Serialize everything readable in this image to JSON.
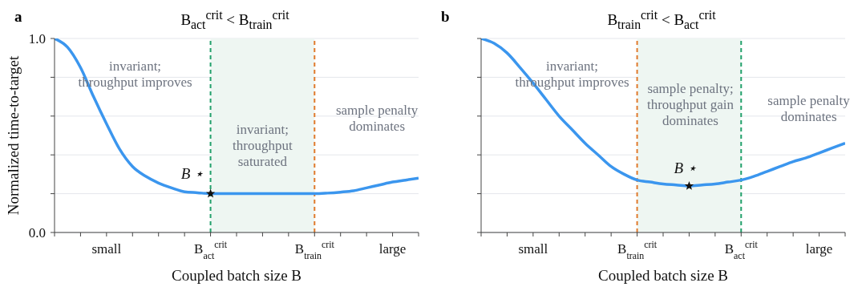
{
  "chart_data": [
    {
      "type": "line",
      "title": "B$_{act}$$^{crit}$ < B$_{train}$$^{crit}$",
      "xlabel": "Coupled batch size B",
      "ylabel": "Normalized time-to-target",
      "categories": [
        null,
        null,
        null,
        null,
        "small",
        null,
        null,
        null,
        null,
        null,
        null,
        null,
        "B$_{act}$$^{crit}$",
        null,
        null,
        null,
        null,
        null,
        null,
        null,
        "B$_{train}$$^{crit}$",
        null,
        null,
        null,
        null,
        null,
        "large",
        null,
        null
      ],
      "ylim": [
        0,
        1.0
      ],
      "yticks": [
        {
          "value": 0,
          "label": "0.0"
        },
        {
          "value": 0.2,
          "label": null
        },
        {
          "value": 0.4,
          "label": null
        },
        {
          "value": 0.6,
          "label": null
        },
        {
          "value": 0.8,
          "label": null
        },
        {
          "value": 1.0,
          "label": "1.0"
        }
      ],
      "grid": "y",
      "series": [
        {
          "color": "#3b96ee",
          "values": [
            1.0,
            0.955,
            0.85,
            0.7,
            0.56,
            0.43,
            0.34,
            0.29,
            0.255,
            0.23,
            0.21,
            0.205,
            0.2,
            0.2,
            0.2,
            0.2,
            0.2,
            0.2,
            0.2,
            0.2,
            0.2,
            0.203,
            0.208,
            0.215,
            0.23,
            0.245,
            0.26,
            0.27,
            0.28
          ]
        },
        {
          "type": "scatter",
          "color": "#111111",
          "marker": "star",
          "values": [
            null,
            null,
            null,
            null,
            null,
            null,
            null,
            null,
            null,
            null,
            null,
            null,
            0.2,
            null,
            null,
            null,
            null,
            null,
            null,
            null,
            null,
            null,
            null,
            null,
            null,
            null,
            null,
            null,
            null
          ]
        }
      ],
      "bands": [
        {
          "axis": "x",
          "from": "B$_{act}$$^{crit}$",
          "to": "B$_{train}$$^{crit}$",
          "color": "#eef6f2"
        }
      ],
      "ref_lines": [
        {
          "axis": "x",
          "value": "B$_{act}$$^{crit}$",
          "color": "#22a06b",
          "line_style": "dashed"
        },
        {
          "axis": "x",
          "value": "B$_{train}$$^{crit}$",
          "color": "#e07a2c",
          "line_style": "dashed"
        }
      ],
      "annotations": [
        "a",
        "invariant;\nthroughput improves",
        "invariant;\nthroughput\nsaturated",
        "sample penalty\ndominates",
        "B ⋆"
      ]
    },
    {
      "type": "line",
      "title": "B$_{train}$$^{crit}$ < B$_{act}$$^{crit}$",
      "xlabel": "Coupled batch size B",
      "categories": [
        null,
        null,
        null,
        null,
        "small",
        null,
        null,
        null,
        null,
        null,
        null,
        null,
        "B$_{train}$$^{crit}$",
        null,
        null,
        null,
        null,
        null,
        null,
        null,
        "B$_{act}$$^{crit}$",
        null,
        null,
        null,
        null,
        null,
        "large",
        null,
        null
      ],
      "ylim": [
        0,
        1.0
      ],
      "yticks": [
        0,
        0.2,
        0.4,
        0.6,
        0.8,
        1.0
      ],
      "tick_labels": "x",
      "grid": "y",
      "series": [
        {
          "color": "#3b96ee",
          "values": [
            1.0,
            0.975,
            0.925,
            0.85,
            0.77,
            0.685,
            0.6,
            0.53,
            0.46,
            0.4,
            0.34,
            0.3,
            0.27,
            0.26,
            0.25,
            0.245,
            0.24,
            0.245,
            0.25,
            0.26,
            0.27,
            0.29,
            0.315,
            0.34,
            0.365,
            0.385,
            0.41,
            0.435,
            0.46
          ]
        },
        {
          "type": "scatter",
          "color": "#111111",
          "marker": "star",
          "values": [
            null,
            null,
            null,
            null,
            null,
            null,
            null,
            null,
            null,
            null,
            null,
            null,
            null,
            null,
            null,
            null,
            0.24,
            null,
            null,
            null,
            null,
            null,
            null,
            null,
            null,
            null,
            null,
            null,
            null
          ]
        }
      ],
      "bands": [
        {
          "axis": "x",
          "from": "B$_{train}$$^{crit}$",
          "to": "B$_{act}$$^{crit}$",
          "color": "#eef6f2"
        }
      ],
      "ref_lines": [
        {
          "axis": "x",
          "value": "B$_{train}$$^{crit}$",
          "color": "#e07a2c",
          "line_style": "dashed"
        },
        {
          "axis": "x",
          "value": "B$_{act}$$^{crit}$",
          "color": "#22a06b",
          "line_style": "dashed"
        }
      ],
      "annotations": [
        "b",
        "invariant;\nthroughput improves",
        "sample penalty;\nthroughput gain\ndominates",
        "sample penalty\ndominates",
        "B ⋆"
      ]
    }
  ]
}
